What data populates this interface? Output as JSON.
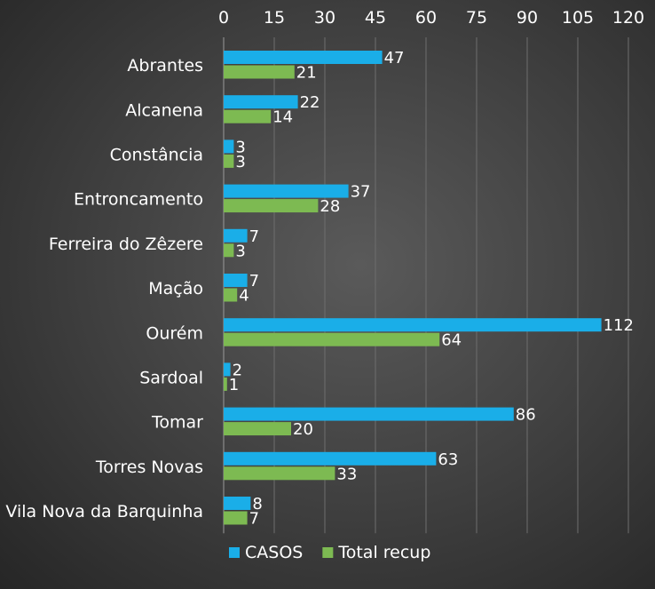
{
  "chart_data": {
    "type": "bar",
    "orientation": "horizontal",
    "categories": [
      "Abrantes",
      "Alcanena",
      "Constância",
      "Entroncamento",
      "Ferreira do Zêzere",
      "Mação",
      "Ourém",
      "Sardoal",
      "Tomar",
      "Torres Novas",
      "Vila Nova da Barquinha"
    ],
    "series": [
      {
        "name": "CASOS",
        "values": [
          47,
          22,
          3,
          37,
          7,
          7,
          112,
          2,
          86,
          63,
          8
        ],
        "color": "#1aaee8"
      },
      {
        "name": "Total recup",
        "values": [
          21,
          14,
          3,
          28,
          3,
          4,
          64,
          1,
          20,
          33,
          7
        ],
        "color": "#7dba52"
      }
    ],
    "xlim": [
      0,
      120
    ],
    "xticks": [
      0,
      15,
      30,
      45,
      60,
      75,
      90,
      105,
      120
    ],
    "axis_position": "top",
    "grid": true,
    "legend_position": "bottom",
    "data_labels": true,
    "title": "",
    "xlabel": "",
    "ylabel": ""
  }
}
